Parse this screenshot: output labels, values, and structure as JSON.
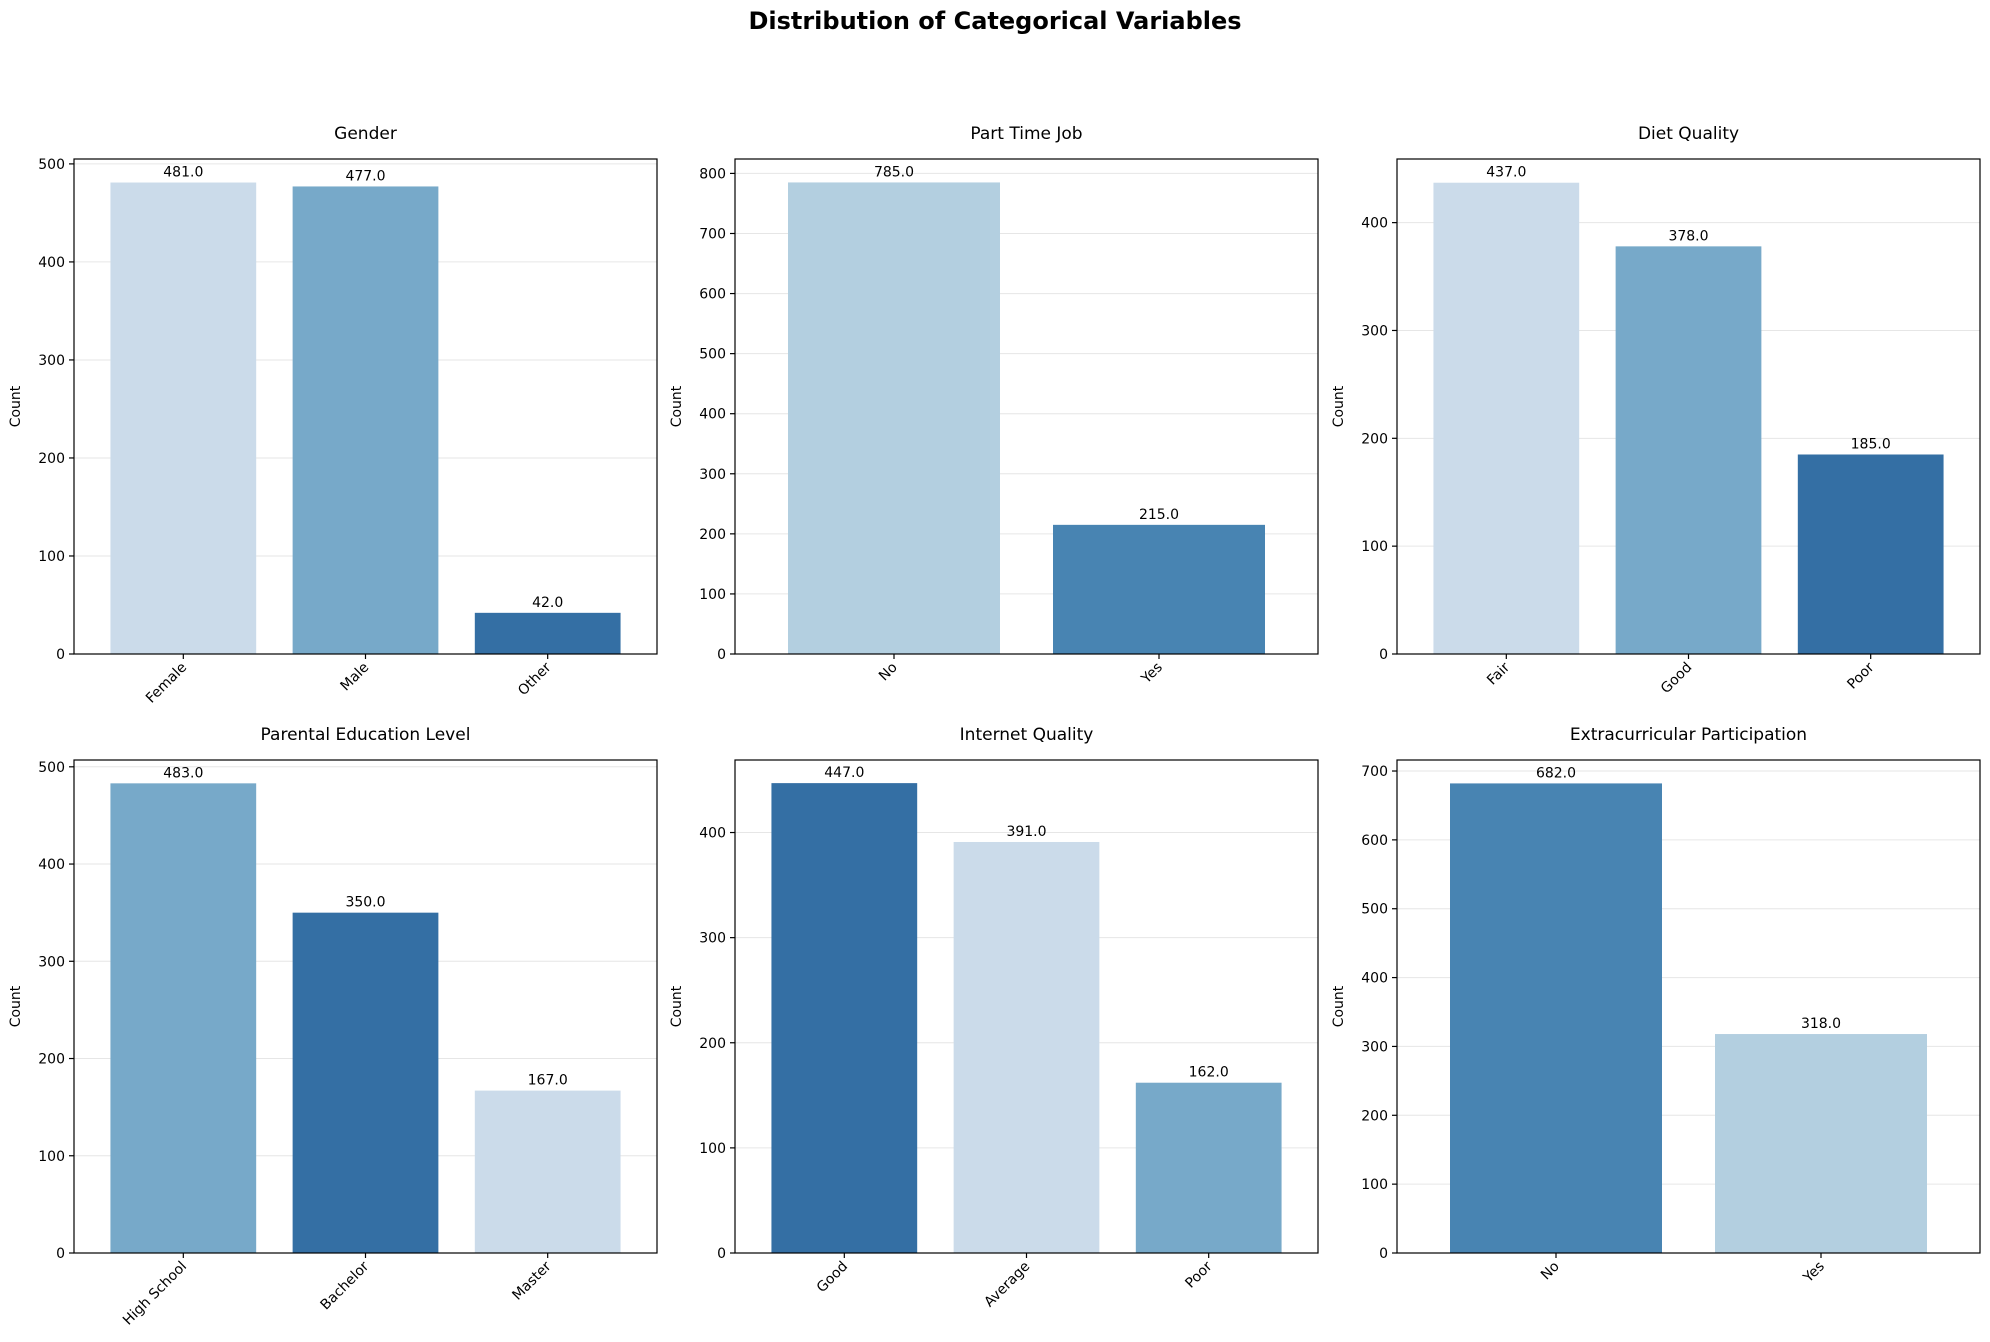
{
  "figure": {
    "title": "Distribution of Categorical Variables"
  },
  "colors": {
    "blue_1": "#cbdbea",
    "blue_2": "#b3cfe0",
    "blue_3": "#77a9c9",
    "blue_4": "#4884b2",
    "blue_5": "#346fa4"
  },
  "chart_data": [
    {
      "type": "bar",
      "title": "Gender",
      "ylabel": "Count",
      "categories": [
        "Female",
        "Male",
        "Other"
      ],
      "values": [
        481,
        477,
        42
      ],
      "value_labels": [
        "481.0",
        "477.0",
        "42.0"
      ],
      "bar_colors": [
        "#cbdbea",
        "#77a9c9",
        "#346fa4"
      ],
      "ylim": [
        0,
        505
      ],
      "yticks": [
        0,
        100,
        200,
        300,
        400,
        500
      ],
      "grid": "y"
    },
    {
      "type": "bar",
      "title": "Part Time Job",
      "ylabel": "Count",
      "categories": [
        "No",
        "Yes"
      ],
      "values": [
        785,
        215
      ],
      "value_labels": [
        "785.0",
        "215.0"
      ],
      "bar_colors": [
        "#b3cfe0",
        "#4884b2"
      ],
      "ylim": [
        0,
        824
      ],
      "yticks": [
        0,
        100,
        200,
        300,
        400,
        500,
        600,
        700,
        800
      ],
      "grid": "y"
    },
    {
      "type": "bar",
      "title": "Diet Quality",
      "ylabel": "Count",
      "categories": [
        "Fair",
        "Good",
        "Poor"
      ],
      "values": [
        437,
        378,
        185
      ],
      "value_labels": [
        "437.0",
        "378.0",
        "185.0"
      ],
      "bar_colors": [
        "#cbdbea",
        "#77a9c9",
        "#346fa4"
      ],
      "ylim": [
        0,
        459
      ],
      "yticks": [
        0,
        100,
        200,
        300,
        400
      ],
      "grid": "y"
    },
    {
      "type": "bar",
      "title": "Parental Education Level",
      "ylabel": "Count",
      "categories": [
        "High School",
        "Bachelor",
        "Master"
      ],
      "values": [
        483,
        350,
        167
      ],
      "value_labels": [
        "483.0",
        "350.0",
        "167.0"
      ],
      "bar_colors": [
        "#77a9c9",
        "#346fa4",
        "#cbdbea"
      ],
      "ylim": [
        0,
        507
      ],
      "yticks": [
        0,
        100,
        200,
        300,
        400,
        500
      ],
      "grid": "y"
    },
    {
      "type": "bar",
      "title": "Internet Quality",
      "ylabel": "Count",
      "categories": [
        "Good",
        "Average",
        "Poor"
      ],
      "values": [
        447,
        391,
        162
      ],
      "value_labels": [
        "447.0",
        "391.0",
        "162.0"
      ],
      "bar_colors": [
        "#346fa4",
        "#cbdbea",
        "#77a9c9"
      ],
      "ylim": [
        0,
        469
      ],
      "yticks": [
        0,
        100,
        200,
        300,
        400
      ],
      "grid": "y"
    },
    {
      "type": "bar",
      "title": "Extracurricular Participation",
      "ylabel": "Count",
      "categories": [
        "No",
        "Yes"
      ],
      "values": [
        682,
        318
      ],
      "value_labels": [
        "682.0",
        "318.0"
      ],
      "bar_colors": [
        "#4884b2",
        "#b3cfe0"
      ],
      "ylim": [
        0,
        716
      ],
      "yticks": [
        0,
        100,
        200,
        300,
        400,
        500,
        600,
        700
      ],
      "grid": "y"
    }
  ]
}
